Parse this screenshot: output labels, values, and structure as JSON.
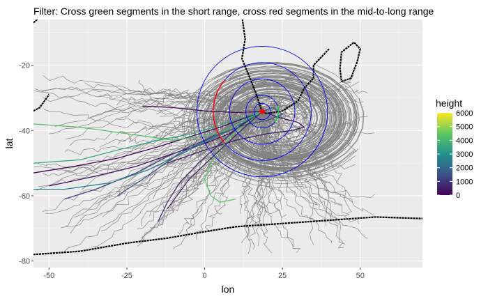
{
  "chart_data": {
    "type": "line",
    "title": "Filter: Cross green segments in the short range, cross red segments in the mid-to-long range",
    "xlabel": "lon",
    "ylabel": "lat",
    "xlim": [
      -55,
      70
    ],
    "ylim": [
      -82,
      -6
    ],
    "x_ticks": [
      -50,
      -25,
      0,
      25,
      50
    ],
    "y_ticks": [
      -80,
      -60,
      -40,
      -20
    ],
    "x_tick_labels": [
      "-50",
      "-25",
      "0",
      "25",
      "50"
    ],
    "y_tick_labels": [
      "-80",
      "-60",
      "-40",
      "-20"
    ],
    "grid": true,
    "legend": {
      "title": "height",
      "placement": "right",
      "range": [
        0,
        6000
      ],
      "ticks": [
        0,
        1000,
        2000,
        3000,
        4000,
        5000,
        6000
      ],
      "tick_labels": [
        "0",
        "1000",
        "2000",
        "3000",
        "4000",
        "5000",
        "6000"
      ],
      "colors": [
        "#440154",
        "#3b528b",
        "#21918c",
        "#5ec962",
        "#fde725"
      ]
    },
    "source_point": {
      "lon": 18.5,
      "lat": -34.2,
      "color": "#ff0000"
    },
    "range_rings": {
      "center": {
        "lon": 18.5,
        "lat": -34.2
      },
      "radii_deg": [
        2.5,
        5,
        10,
        15,
        20
      ],
      "color": "#0000ff",
      "red_arc": {
        "radius_deg": 15,
        "from_deg": 140,
        "to_deg": 220,
        "color": "#ff0000"
      },
      "green_arc": {
        "radius_deg": 5,
        "from_deg": -40,
        "to_deg": 20,
        "color": "#00cc44"
      }
    },
    "series": [
      {
        "height": 0,
        "points": [
          [
            18.5,
            -34.2
          ],
          [
            12,
            -36.5
          ],
          [
            5,
            -39
          ],
          [
            -5,
            -42
          ],
          [
            -15,
            -45
          ],
          [
            -28,
            -48.5
          ],
          [
            -42,
            -51
          ],
          [
            -55,
            -53
          ]
        ]
      },
      {
        "height": 300,
        "points": [
          [
            18.5,
            -34.2
          ],
          [
            14,
            -37
          ],
          [
            8,
            -41
          ],
          [
            0,
            -44
          ],
          [
            -10,
            -47
          ],
          [
            -22,
            -51
          ],
          [
            -35,
            -54
          ],
          [
            -50,
            -57
          ]
        ]
      },
      {
        "height": 500,
        "points": [
          [
            18.5,
            -34.2
          ],
          [
            24,
            -36
          ],
          [
            30,
            -37.5
          ],
          [
            32,
            -39
          ],
          [
            28,
            -40
          ],
          [
            20,
            -41
          ],
          [
            10,
            -43
          ],
          [
            0,
            -46
          ],
          [
            -12,
            -50
          ]
        ]
      },
      {
        "height": 800,
        "points": [
          [
            18.5,
            -34.2
          ],
          [
            12,
            -38
          ],
          [
            5,
            -44
          ],
          [
            -2,
            -50
          ],
          [
            -8,
            -56
          ],
          [
            -12,
            -62
          ],
          [
            -15,
            -68
          ]
        ]
      },
      {
        "height": 1200,
        "points": [
          [
            18.5,
            -34.2
          ],
          [
            10,
            -38
          ],
          [
            0,
            -43
          ],
          [
            -12,
            -48
          ],
          [
            -22,
            -53
          ],
          [
            -35,
            -58
          ],
          [
            -45,
            -61
          ]
        ]
      },
      {
        "height": 200,
        "points": [
          [
            18.5,
            -34.2
          ],
          [
            10,
            -34.5
          ],
          [
            0,
            -34
          ],
          [
            -10,
            -33
          ],
          [
            -20,
            -32.5
          ]
        ]
      },
      {
        "height": 2500,
        "points": [
          [
            18.5,
            -34.2
          ],
          [
            8,
            -40
          ],
          [
            -5,
            -46
          ],
          [
            -18,
            -52
          ],
          [
            -30,
            -56
          ],
          [
            -45,
            -58
          ],
          [
            -55,
            -58
          ]
        ]
      },
      {
        "height": 3500,
        "points": [
          [
            18.5,
            -34.2
          ],
          [
            6,
            -38
          ],
          [
            -4,
            -41
          ],
          [
            -15,
            -43
          ],
          [
            -28,
            -46
          ],
          [
            -40,
            -49
          ],
          [
            -55,
            -50
          ]
        ]
      },
      {
        "height": 4500,
        "points": [
          [
            18.5,
            -34.2
          ],
          [
            8,
            -42
          ],
          [
            2,
            -50
          ],
          [
            0,
            -55
          ],
          [
            2,
            -60
          ],
          [
            5,
            -62
          ],
          [
            10,
            -61
          ]
        ]
      },
      {
        "height": 4200,
        "points": [
          [
            18.5,
            -34.2
          ],
          [
            4,
            -41
          ],
          [
            -10,
            -43
          ],
          [
            -25,
            -41
          ],
          [
            -40,
            -39
          ],
          [
            -55,
            -38
          ]
        ]
      },
      {
        "height": 1500,
        "points": [
          [
            18.5,
            -34.2
          ],
          [
            22,
            -33
          ],
          [
            25,
            -35
          ],
          [
            20,
            -37
          ],
          [
            14,
            -38
          ],
          [
            5,
            -41
          ],
          [
            -8,
            -47
          ],
          [
            -20,
            -55
          ],
          [
            -28,
            -60
          ]
        ]
      },
      {
        "height": 600,
        "points": [
          [
            18.5,
            -34.2
          ],
          [
            14,
            -38
          ],
          [
            6,
            -45
          ],
          [
            -5,
            -55
          ],
          [
            -12,
            -64
          ]
        ]
      }
    ]
  }
}
